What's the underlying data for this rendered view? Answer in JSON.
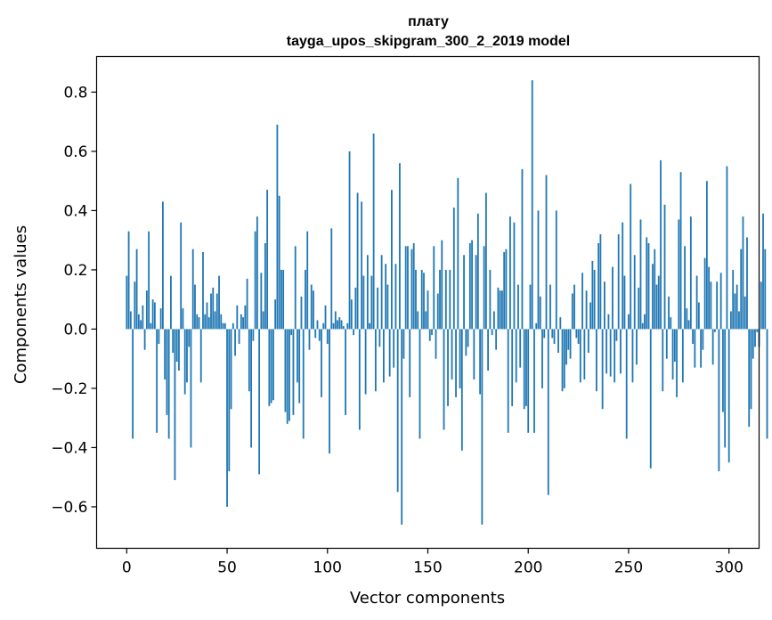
{
  "chart_data": {
    "type": "bar",
    "title": "плату",
    "subtitle": "tayga_upos_skipgram_300_2_2019 model",
    "xlabel": "Vector components",
    "ylabel": "Components values",
    "xlim": [
      -15,
      315
    ],
    "ylim": [
      -0.74,
      0.92
    ],
    "x_ticks": [
      0,
      50,
      100,
      150,
      200,
      250,
      300
    ],
    "y_ticks": [
      -0.6,
      -0.4,
      -0.2,
      0.0,
      0.2,
      0.4,
      0.6,
      0.8
    ],
    "x_tick_labels": [
      "0",
      "50",
      "100",
      "150",
      "200",
      "250",
      "300"
    ],
    "y_tick_labels": [
      "−0.6",
      "−0.4",
      "−0.2",
      "0.0",
      "0.2",
      "0.4",
      "0.6",
      "0.8"
    ],
    "grid": false,
    "bar_color": "#1f77b4",
    "values": [
      0.18,
      0.33,
      0.06,
      -0.37,
      0.16,
      0.27,
      0.05,
      0.03,
      0.08,
      -0.07,
      0.13,
      0.33,
      0.02,
      0.1,
      0.09,
      -0.35,
      -0.05,
      0.07,
      0.43,
      -0.17,
      -0.29,
      -0.37,
      0.18,
      -0.08,
      -0.51,
      -0.11,
      -0.14,
      0.36,
      0.07,
      -0.22,
      -0.18,
      -0.06,
      -0.4,
      0.27,
      0.15,
      0.05,
      0.04,
      -0.18,
      0.26,
      0.05,
      0.09,
      0.04,
      0.12,
      0.14,
      0.06,
      0.12,
      0.18,
      0.05,
      0.02,
      0.02,
      -0.6,
      -0.48,
      -0.27,
      0.02,
      -0.09,
      0.08,
      -0.05,
      0.05,
      0.04,
      0.08,
      0.17,
      -0.21,
      -0.4,
      -0.04,
      0.33,
      0.38,
      -0.49,
      0.19,
      0.06,
      0.29,
      0.47,
      -0.26,
      -0.25,
      -0.24,
      0.1,
      0.69,
      0.45,
      0.2,
      0.2,
      -0.28,
      -0.32,
      -0.31,
      -0.02,
      -0.29,
      0.28,
      -0.18,
      -0.25,
      0.11,
      -0.37,
      0.2,
      0.33,
      -0.07,
      0.15,
      0.13,
      -0.03,
      0.03,
      -0.04,
      -0.23,
      0.02,
      0.08,
      -0.05,
      -0.42,
      0.34,
      0.02,
      0.06,
      0.03,
      0.04,
      0.03,
      0.01,
      -0.29,
      0.02,
      0.6,
      0.1,
      -0.02,
      0.14,
      0.46,
      -0.34,
      0.43,
      0.18,
      -0.22,
      0.25,
      0.02,
      0.18,
      0.66,
      -0.21,
      0.14,
      -0.06,
      0.25,
      -0.18,
      0.22,
      0.15,
      -0.16,
      0.47,
      -0.13,
      0.22,
      -0.55,
      0.56,
      -0.66,
      -0.1,
      0.28,
      0.28,
      -0.23,
      0.27,
      0.29,
      0.2,
      0.06,
      -0.37,
      0.2,
      0.19,
      0.06,
      0.13,
      -0.04,
      -0.02,
      0.28,
      -0.1,
      0.12,
      0.2,
      0.3,
      -0.34,
      0.2,
      -0.26,
      0.2,
      -0.17,
      0.41,
      -0.23,
      0.51,
      -0.2,
      -0.41,
      0.25,
      -0.09,
      -0.06,
      0.29,
      0.3,
      -0.17,
      0.25,
      0.39,
      -0.22,
      -0.66,
      0.28,
      0.46,
      -0.14,
      0.2,
      -0.02,
      0.06,
      -0.07,
      0.14,
      0.13,
      0.13,
      0.26,
      0.27,
      -0.35,
      0.38,
      -0.26,
      0.36,
      -0.18,
      0.15,
      -0.13,
      0.54,
      -0.27,
      -0.26,
      -0.35,
      0.15,
      0.84,
      -0.35,
      0.02,
      0.4,
      0.11,
      -0.2,
      -0.03,
      0.52,
      -0.56,
      0.15,
      -0.03,
      -0.05,
      0.4,
      -0.08,
      0.04,
      -0.21,
      -0.2,
      -0.12,
      -0.07,
      -0.1,
      0.12,
      0.15,
      -0.03,
      -0.05,
      -0.18,
      0.19,
      -0.17,
      0.13,
      -0.08,
      0.09,
      0.23,
      0.2,
      -0.21,
      0.29,
      0.32,
      -0.27,
      0.16,
      -0.15,
      0.05,
      -0.16,
      0.21,
      -0.18,
      -0.04,
      0.32,
      -0.15,
      0.36,
      0.18,
      -0.37,
      0.05,
      0.49,
      -0.18,
      0.25,
      -0.12,
      0.14,
      0.37,
      0.02,
      0.05,
      0.31,
      0.29,
      -0.47,
      0.22,
      0.27,
      0.15,
      0.18,
      0.57,
      -0.21,
      0.42,
      -0.1,
      0.11,
      0.04,
      -0.17,
      -0.11,
      -0.23,
      0.37,
      0.53,
      -0.18,
      0.28,
      0.07,
      0.03,
      0.38,
      -0.05,
      -0.13,
      0.18,
      0.09,
      -0.13,
      -0.07,
      0.24,
      0.5,
      0.21,
      0.16,
      -0.12,
      -0.01,
      0.16,
      -0.48,
      0.19,
      -0.28,
      -0.4,
      0.55,
      -0.45,
      0.06,
      0.2,
      0.12,
      0.15,
      0.06,
      0.27,
      0.38,
      0.11,
      0.31,
      -0.33,
      -0.27,
      -0.1,
      -0.06,
      -0.01,
      -0.06,
      0.16,
      0.39,
      0.27,
      -0.37
    ]
  }
}
